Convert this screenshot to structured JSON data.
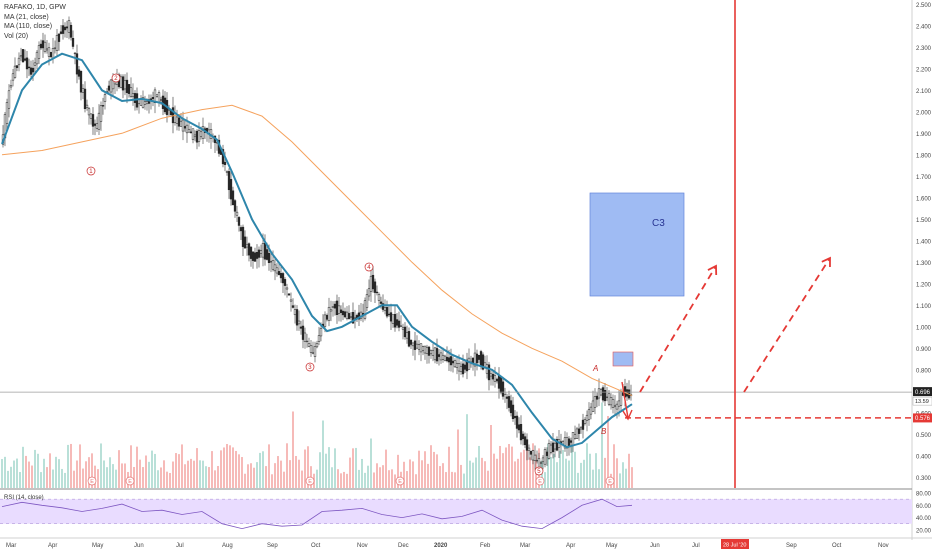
{
  "chart_data": {
    "type": "candlestick",
    "symbol_header": "RAFAKO, 1D, GPW",
    "indicators": [
      "MA (21, close)",
      "MA (110, close)",
      "Vol (20)"
    ],
    "rsi_label": "RSI (14, close)",
    "price_axis": {
      "ticks": [
        "2.500",
        "2.400",
        "2.300",
        "2.200",
        "2.100",
        "2.000",
        "1.900",
        "1.800",
        "1.700",
        "1.600",
        "1.500",
        "1.400",
        "1.300",
        "1.200",
        "1.100",
        "1.000",
        "0.900",
        "0.800",
        "0.696",
        "0.600",
        "0.500",
        "0.400",
        "0.300"
      ],
      "min": 0.25,
      "max": 2.52
    },
    "rsi_axis": {
      "ticks": [
        "80.00",
        "60.00",
        "40.00",
        "20.00"
      ],
      "min": 10,
      "max": 85,
      "band": [
        30,
        70
      ]
    },
    "current_price": {
      "label": "0.696",
      "value": 0.696,
      "sub_label": "13.59"
    },
    "target_level": {
      "label": "0.576",
      "value": 0.576
    },
    "time_axis": {
      "labels": [
        "Mar",
        "Apr",
        "May",
        "Jun",
        "Jul",
        "Aug",
        "Sep",
        "Oct",
        "Nov",
        "Dec",
        "2020",
        "Feb",
        "Mar",
        "Apr",
        "May",
        "Jun",
        "Jul",
        "Sep",
        "Oct",
        "Nov"
      ],
      "highlight_label": "28 Jul '20"
    },
    "wave_labels": [
      "1",
      "2",
      "3",
      "4",
      "5",
      "A",
      "B",
      "C3"
    ],
    "earnings_marker": "E",
    "colors": {
      "up": "#26a69a",
      "down": "#ef5350",
      "ma21": "#2e86ab",
      "ma110": "#f5a25d",
      "rsi": "#7e57c2",
      "box": "#8fb0f2",
      "annot": "#e53935"
    },
    "price_series": [
      {
        "t": 0,
        "p": 1.84
      },
      {
        "t": 10,
        "p": 2.15
      },
      {
        "t": 20,
        "p": 2.27
      },
      {
        "t": 30,
        "p": 2.18
      },
      {
        "t": 40,
        "p": 2.32
      },
      {
        "t": 50,
        "p": 2.26
      },
      {
        "t": 60,
        "p": 2.38
      },
      {
        "t": 68,
        "p": 2.4
      },
      {
        "t": 75,
        "p": 2.22
      },
      {
        "t": 85,
        "p": 2.02
      },
      {
        "t": 95,
        "p": 1.92
      },
      {
        "t": 105,
        "p": 2.1
      },
      {
        "t": 115,
        "p": 2.15
      },
      {
        "t": 125,
        "p": 2.12
      },
      {
        "t": 135,
        "p": 2.05
      },
      {
        "t": 145,
        "p": 2.04
      },
      {
        "t": 155,
        "p": 2.08
      },
      {
        "t": 165,
        "p": 2.02
      },
      {
        "t": 175,
        "p": 1.96
      },
      {
        "t": 185,
        "p": 1.92
      },
      {
        "t": 195,
        "p": 1.88
      },
      {
        "t": 205,
        "p": 1.92
      },
      {
        "t": 215,
        "p": 1.86
      },
      {
        "t": 222,
        "p": 1.78
      },
      {
        "t": 232,
        "p": 1.58
      },
      {
        "t": 242,
        "p": 1.4
      },
      {
        "t": 252,
        "p": 1.32
      },
      {
        "t": 262,
        "p": 1.36
      },
      {
        "t": 272,
        "p": 1.28
      },
      {
        "t": 282,
        "p": 1.22
      },
      {
        "t": 292,
        "p": 1.08
      },
      {
        "t": 302,
        "p": 0.96
      },
      {
        "t": 312,
        "p": 0.87
      },
      {
        "t": 322,
        "p": 1.02
      },
      {
        "t": 332,
        "p": 1.1
      },
      {
        "t": 342,
        "p": 1.06
      },
      {
        "t": 352,
        "p": 1.04
      },
      {
        "t": 362,
        "p": 1.06
      },
      {
        "t": 370,
        "p": 1.22
      },
      {
        "t": 380,
        "p": 1.1
      },
      {
        "t": 390,
        "p": 1.04
      },
      {
        "t": 400,
        "p": 1.0
      },
      {
        "t": 410,
        "p": 0.92
      },
      {
        "t": 420,
        "p": 0.9
      },
      {
        "t": 430,
        "p": 0.88
      },
      {
        "t": 440,
        "p": 0.86
      },
      {
        "t": 450,
        "p": 0.84
      },
      {
        "t": 460,
        "p": 0.8
      },
      {
        "t": 470,
        "p": 0.84
      },
      {
        "t": 478,
        "p": 0.86
      },
      {
        "t": 488,
        "p": 0.78
      },
      {
        "t": 498,
        "p": 0.74
      },
      {
        "t": 508,
        "p": 0.64
      },
      {
        "t": 518,
        "p": 0.52
      },
      {
        "t": 528,
        "p": 0.42
      },
      {
        "t": 538,
        "p": 0.36
      },
      {
        "t": 548,
        "p": 0.43
      },
      {
        "t": 558,
        "p": 0.46
      },
      {
        "t": 568,
        "p": 0.46
      },
      {
        "t": 578,
        "p": 0.52
      },
      {
        "t": 588,
        "p": 0.6
      },
      {
        "t": 598,
        "p": 0.7
      },
      {
        "t": 608,
        "p": 0.66
      },
      {
        "t": 615,
        "p": 0.62
      },
      {
        "t": 622,
        "p": 0.7
      },
      {
        "t": 630,
        "p": 0.68
      }
    ],
    "ma21_series": [
      {
        "t": 0,
        "p": 1.85
      },
      {
        "t": 20,
        "p": 2.1
      },
      {
        "t": 40,
        "p": 2.22
      },
      {
        "t": 60,
        "p": 2.27
      },
      {
        "t": 80,
        "p": 2.24
      },
      {
        "t": 100,
        "p": 2.1
      },
      {
        "t": 120,
        "p": 2.05
      },
      {
        "t": 140,
        "p": 2.06
      },
      {
        "t": 160,
        "p": 2.04
      },
      {
        "t": 180,
        "p": 1.97
      },
      {
        "t": 200,
        "p": 1.92
      },
      {
        "t": 215,
        "p": 1.87
      },
      {
        "t": 230,
        "p": 1.72
      },
      {
        "t": 250,
        "p": 1.5
      },
      {
        "t": 270,
        "p": 1.34
      },
      {
        "t": 290,
        "p": 1.22
      },
      {
        "t": 310,
        "p": 1.05
      },
      {
        "t": 325,
        "p": 0.98
      },
      {
        "t": 340,
        "p": 1.0
      },
      {
        "t": 360,
        "p": 1.05
      },
      {
        "t": 380,
        "p": 1.1
      },
      {
        "t": 395,
        "p": 1.1
      },
      {
        "t": 410,
        "p": 1.0
      },
      {
        "t": 430,
        "p": 0.93
      },
      {
        "t": 450,
        "p": 0.87
      },
      {
        "t": 470,
        "p": 0.83
      },
      {
        "t": 490,
        "p": 0.8
      },
      {
        "t": 510,
        "p": 0.73
      },
      {
        "t": 530,
        "p": 0.6
      },
      {
        "t": 550,
        "p": 0.48
      },
      {
        "t": 565,
        "p": 0.44
      },
      {
        "t": 580,
        "p": 0.46
      },
      {
        "t": 595,
        "p": 0.52
      },
      {
        "t": 610,
        "p": 0.58
      },
      {
        "t": 630,
        "p": 0.64
      }
    ],
    "ma110_series": [
      {
        "t": 0,
        "p": 1.8
      },
      {
        "t": 40,
        "p": 1.82
      },
      {
        "t": 80,
        "p": 1.86
      },
      {
        "t": 120,
        "p": 1.9
      },
      {
        "t": 160,
        "p": 1.97
      },
      {
        "t": 200,
        "p": 2.01
      },
      {
        "t": 230,
        "p": 2.03
      },
      {
        "t": 260,
        "p": 1.98
      },
      {
        "t": 290,
        "p": 1.86
      },
      {
        "t": 320,
        "p": 1.72
      },
      {
        "t": 350,
        "p": 1.58
      },
      {
        "t": 380,
        "p": 1.44
      },
      {
        "t": 410,
        "p": 1.3
      },
      {
        "t": 440,
        "p": 1.17
      },
      {
        "t": 470,
        "p": 1.06
      },
      {
        "t": 500,
        "p": 0.97
      },
      {
        "t": 530,
        "p": 0.9
      },
      {
        "t": 560,
        "p": 0.84
      },
      {
        "t": 590,
        "p": 0.76
      },
      {
        "t": 630,
        "p": 0.68
      }
    ],
    "rsi_series": [
      {
        "t": 0,
        "p": 58
      },
      {
        "t": 20,
        "p": 65
      },
      {
        "t": 40,
        "p": 60
      },
      {
        "t": 60,
        "p": 56
      },
      {
        "t": 80,
        "p": 50
      },
      {
        "t": 100,
        "p": 55
      },
      {
        "t": 120,
        "p": 62
      },
      {
        "t": 140,
        "p": 50
      },
      {
        "t": 160,
        "p": 52
      },
      {
        "t": 180,
        "p": 45
      },
      {
        "t": 200,
        "p": 50
      },
      {
        "t": 220,
        "p": 30
      },
      {
        "t": 240,
        "p": 22
      },
      {
        "t": 260,
        "p": 30
      },
      {
        "t": 280,
        "p": 26
      },
      {
        "t": 300,
        "p": 28
      },
      {
        "t": 320,
        "p": 50
      },
      {
        "t": 340,
        "p": 52
      },
      {
        "t": 360,
        "p": 55
      },
      {
        "t": 380,
        "p": 45
      },
      {
        "t": 400,
        "p": 40
      },
      {
        "t": 420,
        "p": 46
      },
      {
        "t": 440,
        "p": 38
      },
      {
        "t": 460,
        "p": 42
      },
      {
        "t": 480,
        "p": 52
      },
      {
        "t": 500,
        "p": 36
      },
      {
        "t": 520,
        "p": 26
      },
      {
        "t": 540,
        "p": 22
      },
      {
        "t": 560,
        "p": 40
      },
      {
        "t": 580,
        "p": 60
      },
      {
        "t": 600,
        "p": 70
      },
      {
        "t": 615,
        "p": 58
      },
      {
        "t": 630,
        "p": 60
      }
    ],
    "volume_spikes": [
      {
        "t": 290,
        "v": 0.85
      },
      {
        "t": 320,
        "v": 0.75
      },
      {
        "t": 370,
        "v": 0.55
      },
      {
        "t": 455,
        "v": 0.65
      },
      {
        "t": 465,
        "v": 0.82
      },
      {
        "t": 490,
        "v": 0.7
      },
      {
        "t": 505,
        "v": 0.45
      },
      {
        "t": 600,
        "v": 0.95
      },
      {
        "t": 605,
        "v": 0.8
      }
    ]
  }
}
